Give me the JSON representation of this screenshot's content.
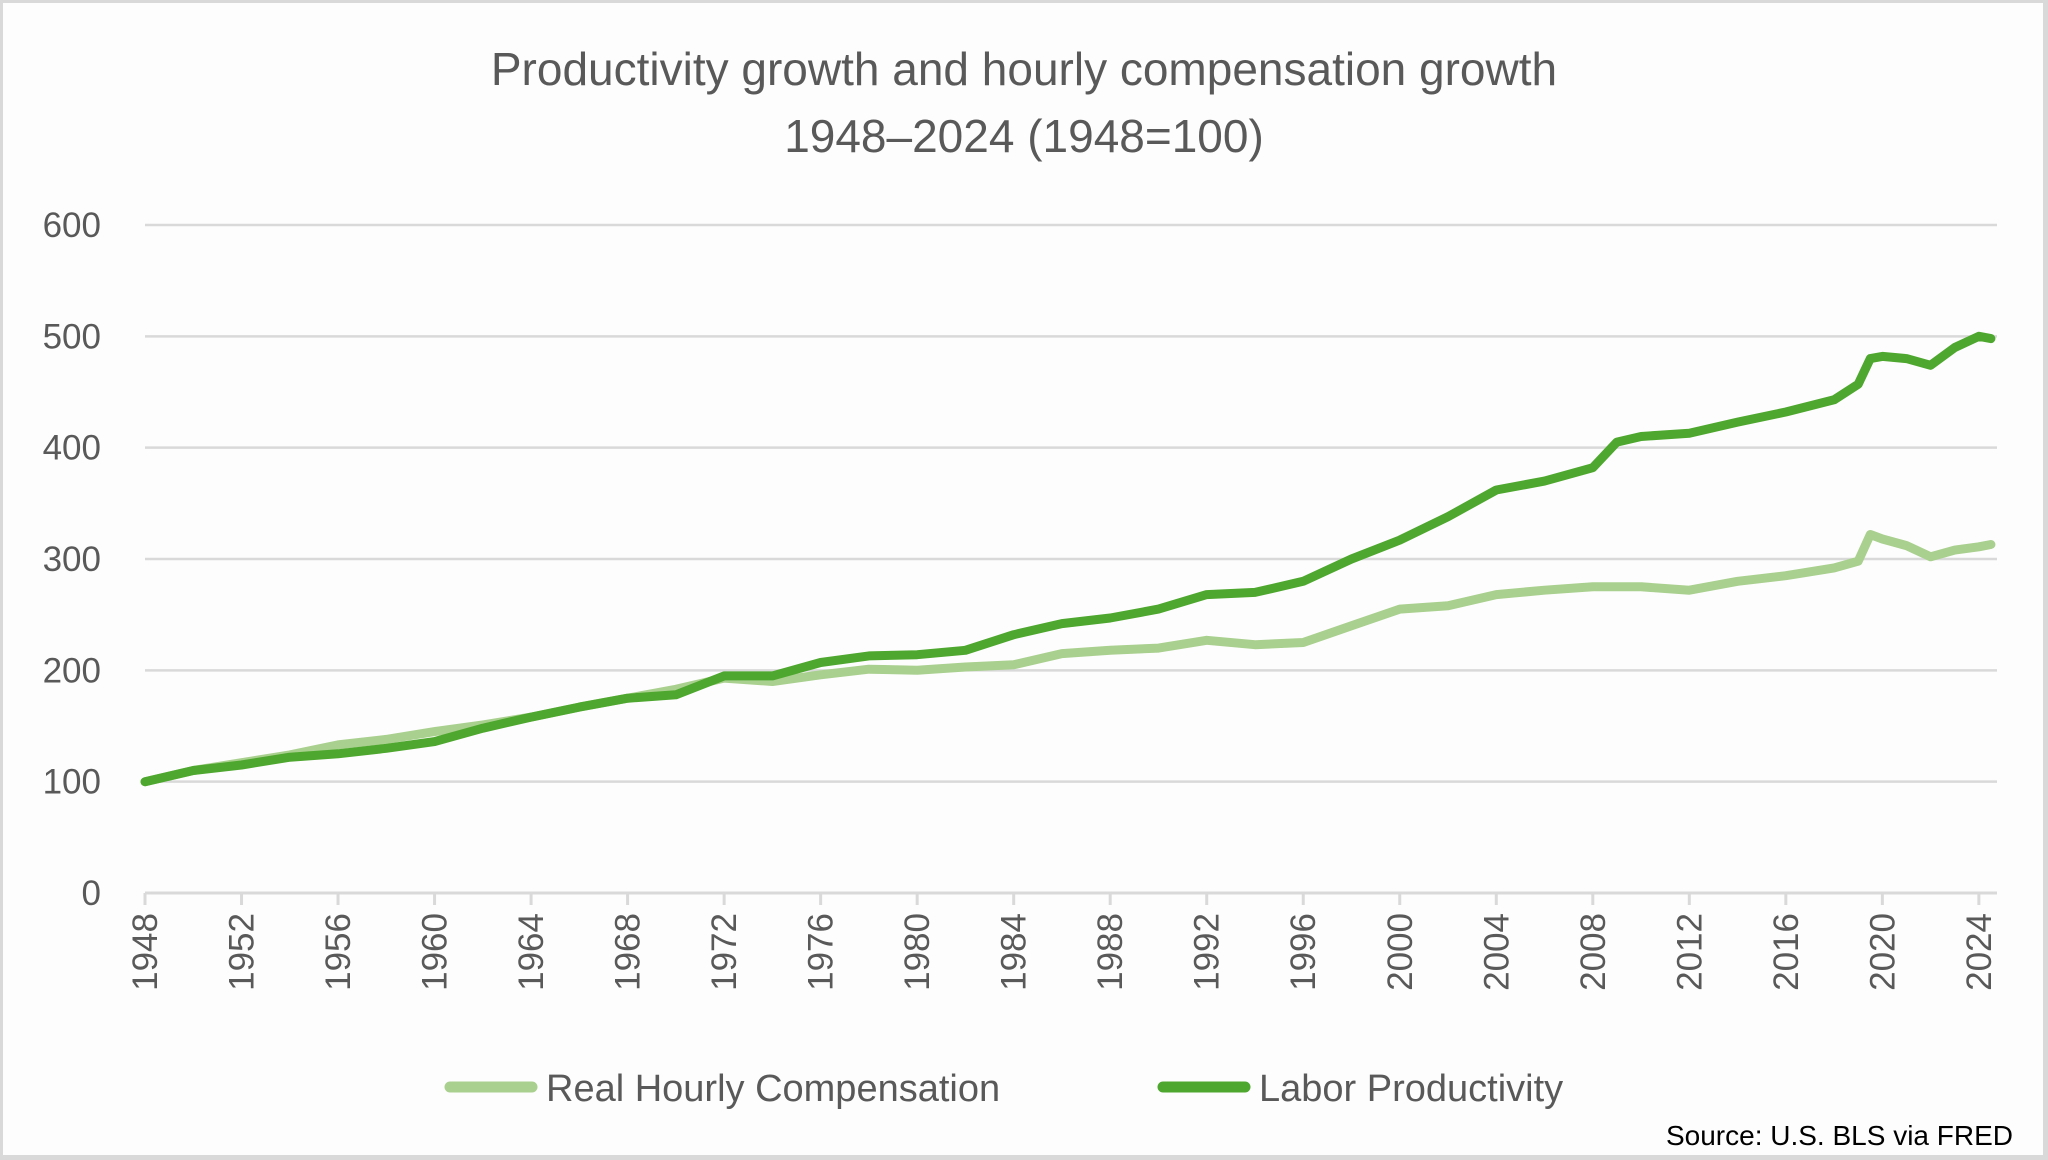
{
  "chart_data": {
    "type": "line",
    "title": [
      "Productivity growth and hourly compensation growth",
      "1948–2024 (1948=100)"
    ],
    "xlabel": "",
    "ylabel": "",
    "ylim": [
      0,
      600
    ],
    "xlim": [
      1948,
      2024.5
    ],
    "yticks": [
      "0",
      "100",
      "200",
      "300",
      "400",
      "500",
      "600"
    ],
    "xticks": [
      "1948",
      "1952",
      "1956",
      "1960",
      "1964",
      "1968",
      "1972",
      "1976",
      "1980",
      "1984",
      "1988",
      "1992",
      "1996",
      "2000",
      "2004",
      "2008",
      "2012",
      "2016",
      "2020",
      "2024"
    ],
    "grid": true,
    "legend_position": "bottom",
    "source": "Source: U.S. BLS via FRED",
    "series": [
      {
        "name": "Real Hourly Compensation",
        "color": "#a9d08e",
        "x": [
          1948,
          1950,
          1952,
          1954,
          1956,
          1958,
          1960,
          1962,
          1964,
          1966,
          1968,
          1970,
          1972,
          1974,
          1976,
          1978,
          1980,
          1982,
          1984,
          1986,
          1988,
          1990,
          1992,
          1994,
          1996,
          1998,
          2000,
          2002,
          2004,
          2006,
          2008,
          2010,
          2012,
          2014,
          2016,
          2018,
          2019,
          2019.5,
          2020,
          2021,
          2022,
          2023,
          2024,
          2024.5
        ],
        "values": [
          100,
          110,
          117,
          124,
          133,
          138,
          145,
          151,
          158,
          167,
          175,
          183,
          193,
          190,
          196,
          201,
          200,
          203,
          205,
          215,
          218,
          220,
          227,
          223,
          225,
          240,
          255,
          258,
          268,
          272,
          275,
          275,
          272,
          280,
          285,
          292,
          298,
          322,
          318,
          312,
          302,
          308,
          311,
          313
        ]
      },
      {
        "name": "Labor Productivity",
        "color": "#4ea72e",
        "x": [
          1948,
          1950,
          1952,
          1954,
          1956,
          1958,
          1960,
          1962,
          1964,
          1966,
          1968,
          1970,
          1972,
          1974,
          1976,
          1978,
          1980,
          1982,
          1984,
          1986,
          1988,
          1990,
          1992,
          1994,
          1996,
          1998,
          2000,
          2002,
          2004,
          2006,
          2008,
          2009,
          2010,
          2012,
          2014,
          2016,
          2018,
          2019,
          2019.5,
          2020,
          2021,
          2022,
          2023,
          2024,
          2024.5
        ],
        "values": [
          100,
          110,
          115,
          122,
          125,
          130,
          136,
          148,
          158,
          167,
          175,
          178,
          195,
          195,
          207,
          213,
          214,
          218,
          232,
          242,
          247,
          255,
          268,
          270,
          280,
          300,
          317,
          338,
          362,
          370,
          382,
          405,
          410,
          413,
          423,
          432,
          443,
          457,
          480,
          482,
          480,
          474,
          490,
          500,
          498
        ]
      }
    ]
  }
}
